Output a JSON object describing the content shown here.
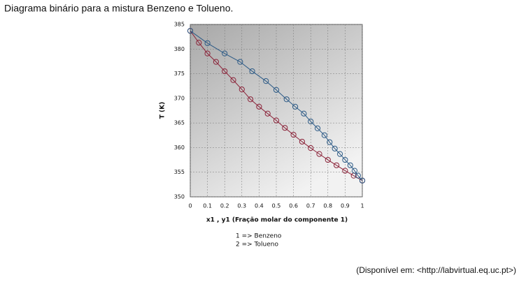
{
  "chart_data": {
    "type": "line",
    "title": "Diagrama binário para a mistura Benzeno e Tolueno.",
    "x_label": "x1 , y1 (Fração molar do componente 1)",
    "y_label": "T (K)",
    "annotations": [
      "1 => Benzeno",
      "2 => Tolueno"
    ],
    "source": "(Disponível em: <http://labvirtual.eq.uc.pt>)",
    "xlim": [
      0,
      1
    ],
    "xticks": [
      0,
      0.1,
      0.2,
      0.3,
      0.4,
      0.5,
      0.6,
      0.7,
      0.8,
      0.9,
      1
    ],
    "ylim": [
      350,
      385
    ],
    "yticks": [
      350,
      355,
      360,
      365,
      370,
      375,
      380,
      385
    ],
    "grid": true,
    "series": [
      {
        "color": "#8b2238",
        "x": [
          0,
          0.05,
          0.1,
          0.15,
          0.2,
          0.25,
          0.3,
          0.35,
          0.4,
          0.45,
          0.5,
          0.55,
          0.6,
          0.65,
          0.7,
          0.75,
          0.8,
          0.85,
          0.9,
          0.95,
          1
        ],
        "values": [
          383.7,
          381.3,
          379.1,
          377.4,
          375.5,
          373.7,
          371.8,
          369.8,
          368.3,
          366.9,
          365.5,
          364,
          362.6,
          361.2,
          359.9,
          358.7,
          357.5,
          356.4,
          355.3,
          354.3,
          353.3
        ]
      },
      {
        "color": "#2c5a86",
        "x": [
          0,
          0.1,
          0.2,
          0.29,
          0.36,
          0.44,
          0.5,
          0.56,
          0.61,
          0.66,
          0.7,
          0.74,
          0.78,
          0.81,
          0.84,
          0.87,
          0.9,
          0.93,
          0.955,
          0.975,
          1
        ],
        "values": [
          383.7,
          381.2,
          379.1,
          377.4,
          375.5,
          373.5,
          371.7,
          369.8,
          368.3,
          366.9,
          365.3,
          363.9,
          362.5,
          361.1,
          359.8,
          358.7,
          357.5,
          356.4,
          355.3,
          354.3,
          353.3
        ]
      }
    ]
  }
}
